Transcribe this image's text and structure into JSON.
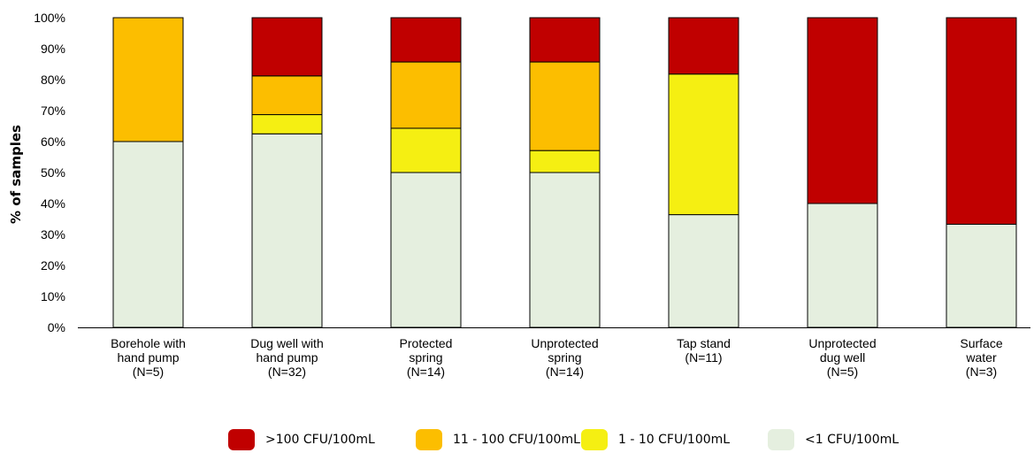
{
  "chart_data": {
    "type": "bar",
    "stacked": true,
    "xlabel": "",
    "ylabel": "% of samples",
    "ylim": [
      0,
      100
    ],
    "y_tick_values": [
      0,
      10,
      20,
      30,
      40,
      50,
      60,
      70,
      80,
      90,
      100
    ],
    "y_tick_labels": [
      "0%",
      "10%",
      "20%",
      "30%",
      "40%",
      "50%",
      "60%",
      "70%",
      "80%",
      "90%",
      "100%"
    ],
    "grid": false,
    "legend_position": "bottom",
    "categories": [
      [
        "Borehole with",
        "hand pump",
        "(N=5)"
      ],
      [
        "Dug well with",
        "hand pump",
        "(N=32)"
      ],
      [
        "Protected",
        "spring",
        "(N=14)"
      ],
      [
        "Unprotected",
        "spring",
        "(N=14)"
      ],
      [
        "Tap stand",
        "(N=11)"
      ],
      [
        "Unprotected",
        "dug well",
        "(N=5)"
      ],
      [
        "Surface",
        "water",
        "(N=3)"
      ]
    ],
    "series": [
      {
        "name": "<1 CFU/100mL",
        "color": "#e5efdf",
        "values": [
          60,
          62.5,
          50,
          50,
          36.4,
          40,
          33.3
        ]
      },
      {
        "name": "1 - 10 CFU/100mL",
        "color": "#f5ef12",
        "values": [
          0,
          6.2,
          14.3,
          7.1,
          45.4,
          0,
          0
        ]
      },
      {
        "name": "11 - 100 CFU/100mL",
        "color": "#fcbe00",
        "values": [
          40,
          12.5,
          21.4,
          28.6,
          0,
          0,
          0
        ]
      },
      {
        "name": ">100 CFU/100mL",
        "color": "#c00000",
        "values": [
          0,
          18.8,
          14.3,
          14.3,
          18.2,
          60,
          66.7
        ]
      }
    ],
    "legend": [
      {
        "label": ">100 CFU/100mL",
        "color": "#c00000"
      },
      {
        "label": "11 - 100 CFU/100mL",
        "color": "#fcbe00"
      },
      {
        "label": "1 - 10 CFU/100mL",
        "color": "#f5ef12"
      },
      {
        "label": "<1 CFU/100mL",
        "color": "#e5efdf"
      }
    ]
  }
}
